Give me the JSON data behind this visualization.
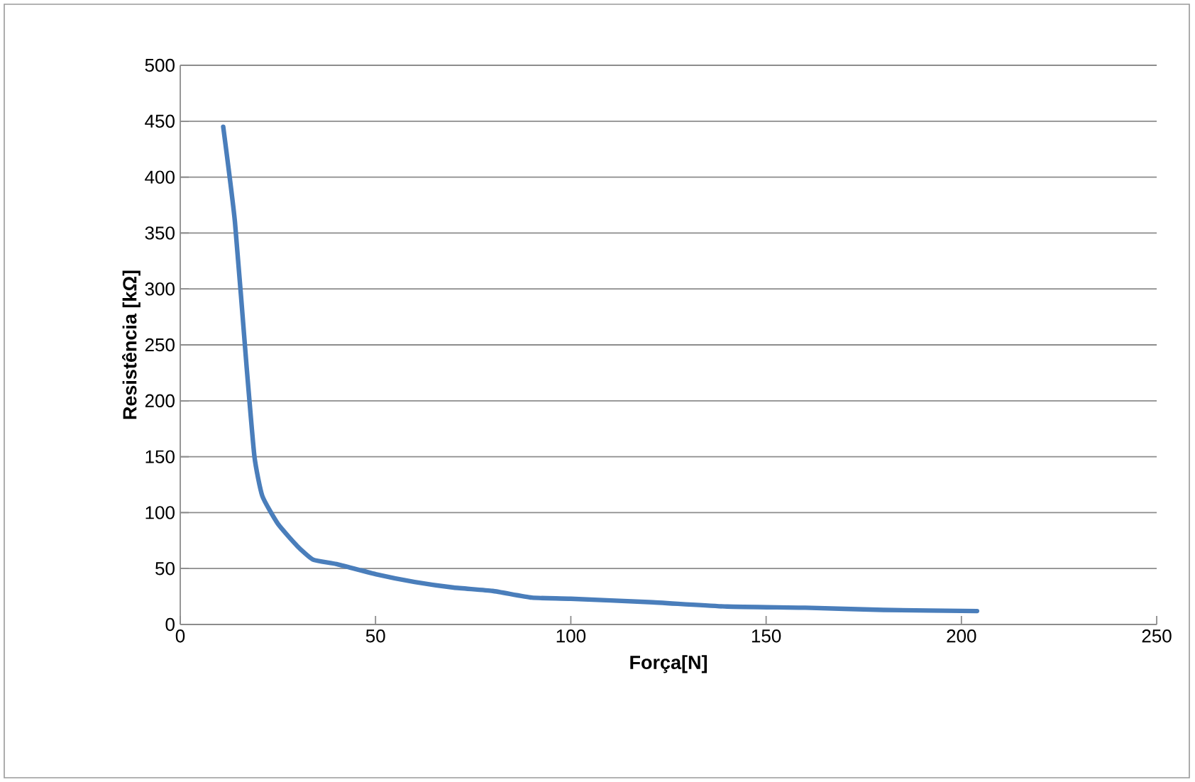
{
  "chart_data": {
    "type": "line",
    "xlabel": "Força[N]",
    "ylabel": "Resistência [kΩ]",
    "x": [
      11,
      14,
      17,
      19,
      21,
      25,
      30,
      34,
      40,
      50,
      60,
      70,
      80,
      90,
      100,
      120,
      140,
      160,
      180,
      204
    ],
    "series": [
      {
        "color": "#4a7ebb",
        "values": [
          445,
          360,
          230,
          150,
          115,
          90,
          70,
          58,
          54,
          45,
          38,
          33,
          30,
          24,
          23,
          20,
          16,
          15,
          13,
          12
        ]
      }
    ],
    "xlim": [
      0,
      250
    ],
    "ylim": [
      0,
      500
    ],
    "xticks": [
      0,
      50,
      100,
      150,
      200,
      250
    ],
    "yticks": [
      0,
      50,
      100,
      150,
      200,
      250,
      300,
      350,
      400,
      450,
      500
    ],
    "grid": "y",
    "marker": "none",
    "line_style": "solid"
  }
}
